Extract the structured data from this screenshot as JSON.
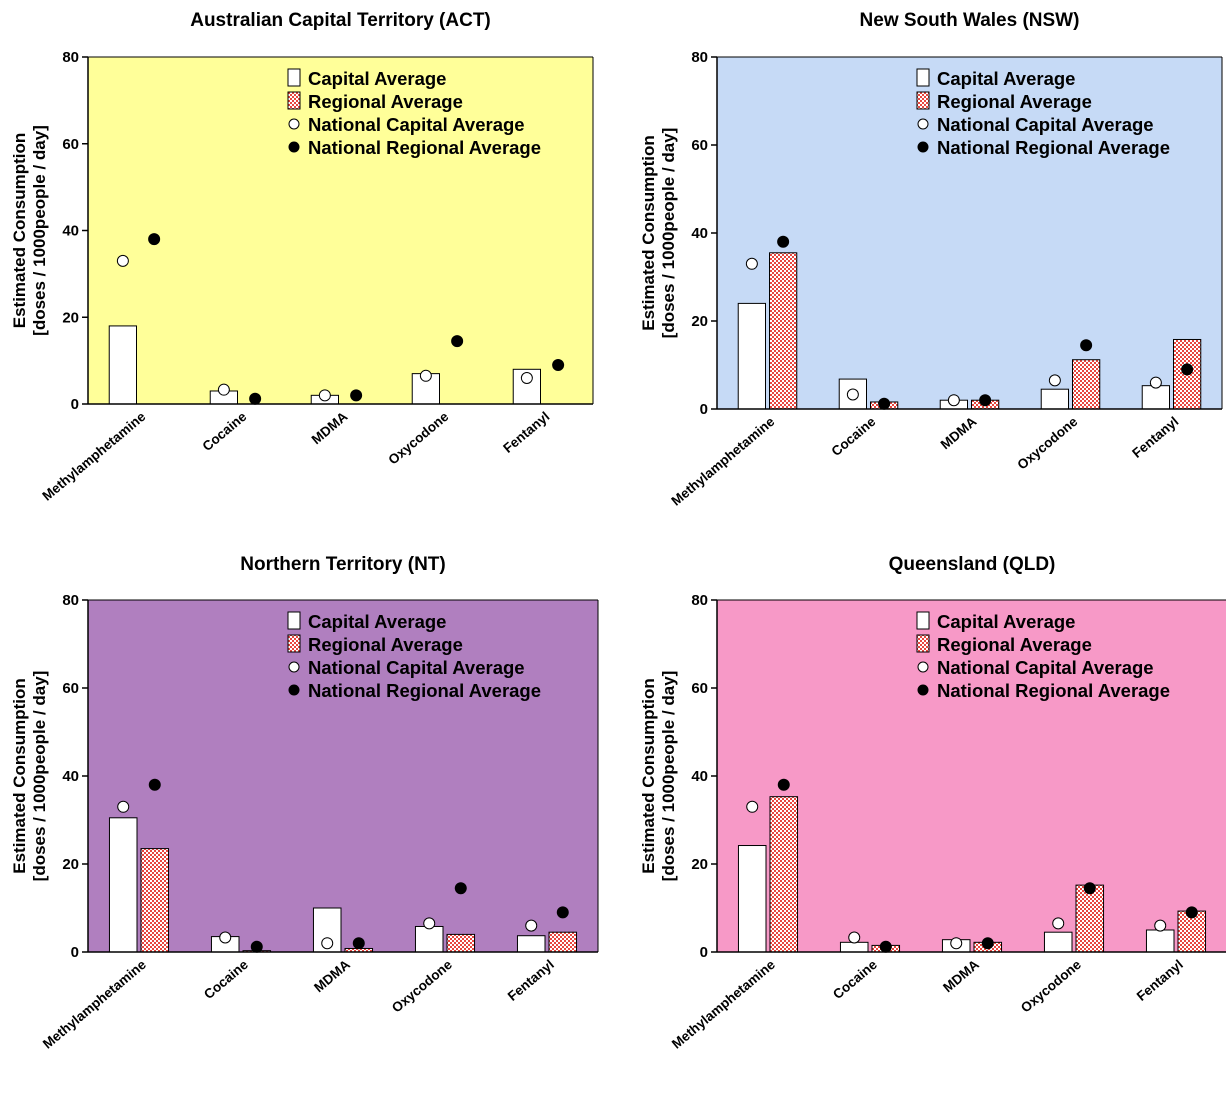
{
  "legend_labels": [
    "Capital Average",
    "Regional Average",
    "National Capital Average",
    "National Regional Average"
  ],
  "y_label_line1": "Estimated Consumption",
  "y_label_line2": "[doses / 1000people / day]",
  "colors": {
    "capital_bar": "#ffffff",
    "regional_bar": "#e8463f",
    "national_capital_dot": "#ffffff",
    "national_regional_dot": "#000000"
  },
  "chart_data": [
    {
      "type": "bar",
      "title": "Australian Capital Territory (ACT)",
      "background": "#ffff99",
      "categories": [
        "Methylamphetamine",
        "Cocaine",
        "MDMA",
        "Oxycodone",
        "Fentanyl"
      ],
      "ylim": [
        0,
        80
      ],
      "yticks": [
        0,
        20,
        40,
        60,
        80
      ],
      "series": [
        {
          "name": "Capital Average",
          "kind": "bar",
          "values": [
            18,
            3,
            2,
            7,
            8
          ]
        },
        {
          "name": "Regional Average",
          "kind": "bar",
          "values": [
            null,
            null,
            null,
            null,
            null
          ]
        },
        {
          "name": "National Capital Average",
          "kind": "point",
          "values": [
            33,
            3.3,
            2,
            6.5,
            6
          ]
        },
        {
          "name": "National Regional Average",
          "kind": "point",
          "values": [
            38,
            1.2,
            2,
            14.5,
            9
          ]
        }
      ]
    },
    {
      "type": "bar",
      "title": "New South Wales (NSW)",
      "background": "#c6daf6",
      "categories": [
        "Methylamphetamine",
        "Cocaine",
        "MDMA",
        "Oxycodone",
        "Fentanyl"
      ],
      "ylim": [
        0,
        80
      ],
      "yticks": [
        0,
        20,
        40,
        60,
        80
      ],
      "series": [
        {
          "name": "Capital Average",
          "kind": "bar",
          "values": [
            24,
            6.8,
            2,
            4.5,
            5.3
          ]
        },
        {
          "name": "Regional Average",
          "kind": "bar",
          "values": [
            35.5,
            1.6,
            2,
            11.2,
            15.8
          ]
        },
        {
          "name": "National Capital Average",
          "kind": "point",
          "values": [
            33,
            3.3,
            2,
            6.5,
            6
          ]
        },
        {
          "name": "National Regional Average",
          "kind": "point",
          "values": [
            38,
            1.2,
            2,
            14.5,
            9
          ]
        }
      ]
    },
    {
      "type": "bar",
      "title": "Northern Territory (NT)",
      "background": "#b07fbf",
      "categories": [
        "Methylamphetamine",
        "Cocaine",
        "MDMA",
        "Oxycodone",
        "Fentanyl"
      ],
      "ylim": [
        0,
        80
      ],
      "yticks": [
        0,
        20,
        40,
        60,
        80
      ],
      "series": [
        {
          "name": "Capital Average",
          "kind": "bar",
          "values": [
            30.5,
            3.5,
            10,
            5.8,
            3.7
          ]
        },
        {
          "name": "Regional Average",
          "kind": "bar",
          "values": [
            23.5,
            0.3,
            0.8,
            4,
            4.5
          ]
        },
        {
          "name": "National Capital Average",
          "kind": "point",
          "values": [
            33,
            3.3,
            2,
            6.5,
            6
          ]
        },
        {
          "name": "National Regional Average",
          "kind": "point",
          "values": [
            38,
            1.2,
            2,
            14.5,
            9
          ]
        }
      ]
    },
    {
      "type": "bar",
      "title": "Queensland (QLD)",
      "background": "#f799c7",
      "categories": [
        "Methylamphetamine",
        "Cocaine",
        "MDMA",
        "Oxycodone",
        "Fentanyl"
      ],
      "ylim": [
        0,
        80
      ],
      "yticks": [
        0,
        20,
        40,
        60,
        80
      ],
      "series": [
        {
          "name": "Capital Average",
          "kind": "bar",
          "values": [
            24.2,
            2.2,
            2.8,
            4.5,
            5
          ]
        },
        {
          "name": "Regional Average",
          "kind": "bar",
          "values": [
            35.3,
            1.5,
            2.2,
            15.2,
            9.3
          ]
        },
        {
          "name": "National Capital Average",
          "kind": "point",
          "values": [
            33,
            3.3,
            2,
            6.5,
            6
          ]
        },
        {
          "name": "National Regional Average",
          "kind": "point",
          "values": [
            38,
            1.2,
            2,
            14.5,
            9
          ]
        }
      ]
    }
  ]
}
